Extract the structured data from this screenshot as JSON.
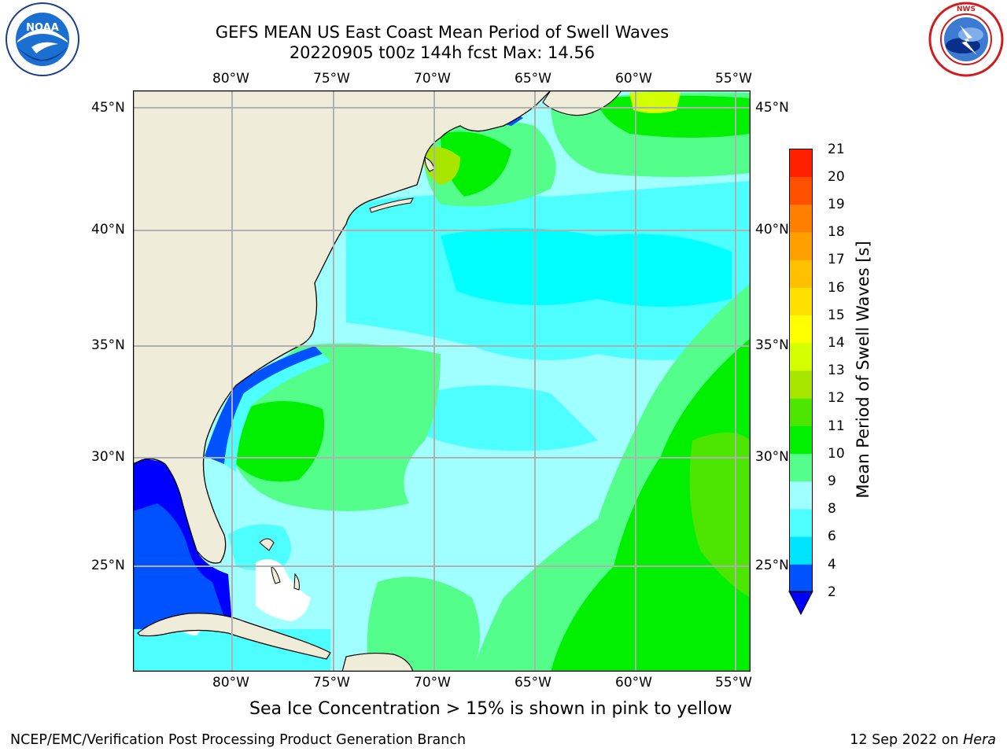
{
  "header": {
    "title_line1": "GEFS MEAN US East Coast Mean Period of Swell Waves",
    "title_line2": "20220905 t00z 144h fcst   Max: 14.56"
  },
  "logos": {
    "noaa": {
      "text": "NOAA",
      "ring": "NATIONAL OCEANIC AND ATMOSPHERIC ADMINISTRATION · U.S. DEPARTMENT OF COMMERCE",
      "icon": "noaa-logo-icon"
    },
    "nws": {
      "ring": "NATIONAL WEATHER SERVICE",
      "icon": "nws-logo-icon"
    }
  },
  "map": {
    "lon_labels": [
      "80°W",
      "75°W",
      "70°W",
      "65°W",
      "60°W",
      "55°W"
    ],
    "lat_labels": [
      "45°N",
      "40°N",
      "35°N",
      "30°N",
      "25°N"
    ],
    "projection": "plate carree",
    "gridlines": true
  },
  "colorbar": {
    "title": "Mean Period of Swell Waves [s]",
    "tick_labels": [
      "2",
      "4",
      "6",
      "8",
      "9",
      "10",
      "11",
      "12",
      "13",
      "14",
      "15",
      "16",
      "17",
      "18",
      "19",
      "20",
      "21"
    ],
    "colors": [
      "#0052ff",
      "#00e5ff",
      "#4dffff",
      "#a0ffff",
      "#53ff8a",
      "#00f000",
      "#4ce600",
      "#a8e600",
      "#d4ff00",
      "#ffff00",
      "#ffe000",
      "#ffc000",
      "#ffa000",
      "#ff8000",
      "#ff5000",
      "#ff2000",
      "#ff0000"
    ],
    "extend_color": "#0000ff"
  },
  "chart_data": {
    "type": "heatmap",
    "title": "GEFS MEAN US East Coast Mean Period of Swell Waves",
    "subtitle": "20220905 t00z 144h fcst   Max: 14.56",
    "variable": "Mean Period of Swell Waves [s]",
    "max": 14.56,
    "levels": [
      2,
      4,
      6,
      8,
      9,
      10,
      11,
      12,
      13,
      14,
      15,
      16,
      17,
      18,
      19,
      20,
      21
    ],
    "lon_range": [
      "80°W",
      "55°W"
    ],
    "lat_range": [
      "45°N",
      "25°N"
    ]
  },
  "footer": {
    "ice_note": "Sea Ice Concentration > 15% is shown in pink to yellow",
    "credit": "NCEP/EMC/Verification Post Processing Product Generation Branch",
    "date": "12 Sep 2022 on ",
    "machine": "Hera"
  }
}
